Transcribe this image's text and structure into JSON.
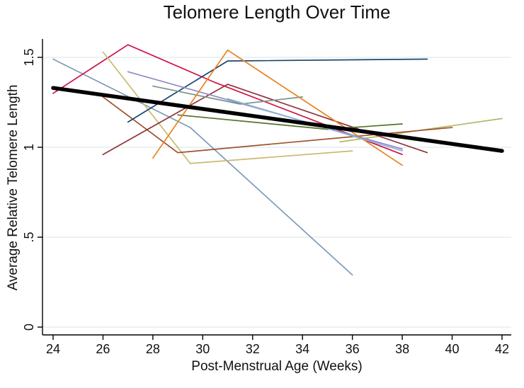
{
  "figure": {
    "title": "Telomere Length Over Time"
  },
  "chart_data": {
    "type": "line",
    "title": "Telomere Length Over Time",
    "xlabel": "Post-Menstrual Age (Weeks)",
    "ylabel": "Average Relative Telomere Length",
    "xlim": [
      23.6,
      42.4
    ],
    "ylim": [
      -0.04,
      1.6
    ],
    "x_ticks": [
      24,
      26,
      28,
      30,
      32,
      34,
      36,
      38,
      40,
      42
    ],
    "y_ticks": [
      {
        "label": "0",
        "value": 0
      },
      {
        "label": ".5",
        "value": 0.5
      },
      {
        "label": "1",
        "value": 1
      },
      {
        "label": "1.5",
        "value": 1.5
      }
    ],
    "grid": "horizontal",
    "legend": "none",
    "colors": {
      "background": "#ffffff",
      "grid": "#e4eef1",
      "axis": "#000000",
      "trend": "#000000"
    },
    "series": [
      {
        "name": "subject-steel-blue",
        "color": "#7f9ab8",
        "role": "individual",
        "points": [
          [
            24,
            1.49
          ],
          [
            29.5,
            1.11
          ],
          [
            36,
            0.29
          ]
        ]
      },
      {
        "name": "subject-crimson",
        "color": "#d01245",
        "role": "individual",
        "points": [
          [
            24,
            1.3
          ],
          [
            27,
            1.57
          ],
          [
            30.5,
            1.36
          ],
          [
            38,
            0.96
          ]
        ]
      },
      {
        "name": "subject-khaki",
        "color": "#c9ba70",
        "role": "individual",
        "points": [
          [
            26,
            1.53
          ],
          [
            29.5,
            0.91
          ],
          [
            36,
            0.98
          ]
        ]
      },
      {
        "name": "subject-olive-khaki",
        "color": "#b3b960",
        "role": "individual",
        "points": [
          [
            35.5,
            1.03
          ],
          [
            42,
            1.16
          ]
        ]
      },
      {
        "name": "subject-sienna",
        "color": "#a0522d",
        "role": "individual",
        "points": [
          [
            26,
            1.28
          ],
          [
            29,
            0.97
          ],
          [
            40,
            1.11
          ]
        ]
      },
      {
        "name": "subject-maroon",
        "color": "#90353b",
        "role": "individual",
        "points": [
          [
            26,
            0.96
          ],
          [
            31,
            1.35
          ],
          [
            39,
            0.97
          ]
        ]
      },
      {
        "name": "subject-navy",
        "color": "#1a476f",
        "role": "individual",
        "points": [
          [
            27,
            1.14
          ],
          [
            31,
            1.48
          ],
          [
            39,
            1.49
          ]
        ]
      },
      {
        "name": "subject-lavender",
        "color": "#9189c9",
        "role": "individual",
        "points": [
          [
            27,
            1.42
          ],
          [
            38,
            0.99
          ]
        ]
      },
      {
        "name": "subject-forest-green",
        "color": "#567328",
        "role": "individual",
        "points": [
          [
            29,
            1.18
          ],
          [
            35,
            1.1
          ],
          [
            38,
            1.13
          ]
        ]
      },
      {
        "name": "subject-teal",
        "color": "#77958b",
        "role": "individual",
        "points": [
          [
            28,
            1.34
          ],
          [
            31.5,
            1.24
          ],
          [
            34,
            1.28
          ]
        ]
      },
      {
        "name": "subject-orange",
        "color": "#e8821e",
        "role": "individual",
        "points": [
          [
            28,
            0.94
          ],
          [
            31,
            1.54
          ],
          [
            38,
            0.9
          ]
        ]
      },
      {
        "name": "subject-light-blue",
        "color": "#8cb3da",
        "role": "individual",
        "points": [
          [
            31,
            1.27
          ],
          [
            38,
            0.98
          ]
        ]
      },
      {
        "name": "trend-line",
        "color": "#000000",
        "role": "trend",
        "points": [
          [
            24,
            1.33
          ],
          [
            42,
            0.98
          ]
        ]
      }
    ]
  }
}
